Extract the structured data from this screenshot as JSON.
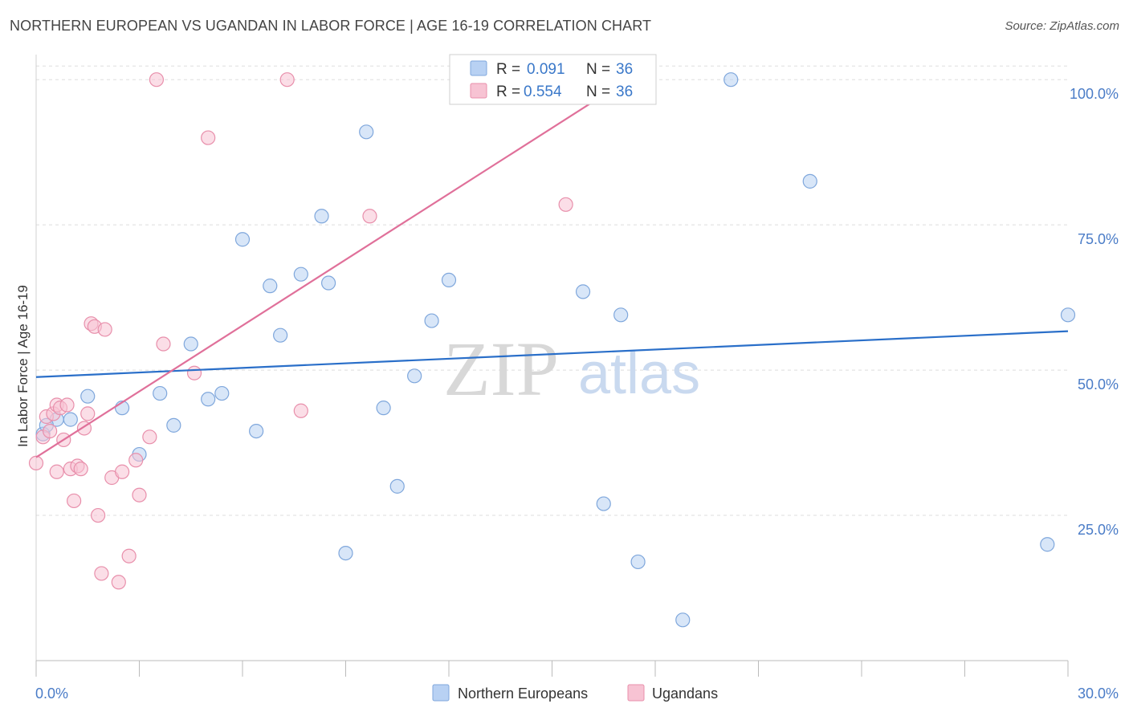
{
  "title": "NORTHERN EUROPEAN VS UGANDAN IN LABOR FORCE | AGE 16-19 CORRELATION CHART",
  "source": "Source: ZipAtlas.com",
  "watermark": {
    "zip": "ZIP",
    "atlas": "atlas"
  },
  "colors": {
    "blue_fill": "#b8d1f3",
    "blue_stroke": "#7fa7dc",
    "blue_line": "#2a6fc9",
    "pink_fill": "#f7c3d3",
    "pink_stroke": "#e88fab",
    "pink_line": "#e0709a",
    "grid": "#dddddd",
    "tick_label": "#4a7cc7"
  },
  "legend": {
    "r_label": "R =",
    "n_label": "N =",
    "entries": [
      {
        "r": "0.091",
        "n": "36"
      },
      {
        "r": "0.554",
        "n": "36"
      }
    ]
  },
  "chart_data": {
    "type": "scatter",
    "title": "NORTHERN EUROPEAN VS UGANDAN IN LABOR FORCE | AGE 16-19 CORRELATION CHART",
    "xlabel": "",
    "ylabel": "In Labor Force | Age 16-19",
    "xlim": [
      0,
      30
    ],
    "ylim": [
      0,
      105
    ],
    "x_tick_labels": [
      "0.0%",
      "30.0%"
    ],
    "y_ticks": [
      25,
      50,
      75,
      100
    ],
    "y_tick_labels": [
      "25.0%",
      "50.0%",
      "75.0%",
      "100.0%"
    ],
    "grid": true,
    "legend_position": "top-center",
    "series": [
      {
        "name": "Northern Europeans",
        "r": 0.091,
        "n": 36,
        "trend": [
          [
            0,
            48.8
          ],
          [
            30,
            56.7
          ]
        ],
        "points": [
          [
            0.2,
            39.0
          ],
          [
            0.6,
            41.5
          ],
          [
            1.0,
            41.5
          ],
          [
            1.5,
            45.5
          ],
          [
            2.5,
            43.5
          ],
          [
            3.0,
            35.5
          ],
          [
            3.6,
            46.0
          ],
          [
            4.0,
            40.5
          ],
          [
            4.5,
            54.5
          ],
          [
            5.0,
            45.0
          ],
          [
            5.4,
            46.0
          ],
          [
            6.0,
            72.5
          ],
          [
            6.4,
            39.5
          ],
          [
            6.8,
            64.5
          ],
          [
            7.1,
            56.0
          ],
          [
            7.7,
            66.5
          ],
          [
            8.3,
            76.5
          ],
          [
            8.5,
            65.0
          ],
          [
            9.0,
            18.5
          ],
          [
            9.6,
            91.0
          ],
          [
            10.1,
            43.5
          ],
          [
            10.5,
            30.0
          ],
          [
            11.0,
            49.0
          ],
          [
            11.5,
            58.5
          ],
          [
            12.0,
            65.5
          ],
          [
            14.1,
            100.0
          ],
          [
            15.9,
            63.5
          ],
          [
            16.5,
            27.0
          ],
          [
            17.0,
            59.5
          ],
          [
            17.5,
            17.0
          ],
          [
            18.8,
            7.0
          ],
          [
            20.2,
            100.0
          ],
          [
            22.5,
            82.5
          ],
          [
            29.4,
            20.0
          ],
          [
            30.0,
            59.5
          ],
          [
            0.3,
            40.5
          ]
        ]
      },
      {
        "name": "Ugandans",
        "r": 0.554,
        "n": 36,
        "trend": [
          [
            0,
            35.0
          ],
          [
            17.2,
            100.0
          ]
        ],
        "points": [
          [
            0.0,
            34.0
          ],
          [
            0.2,
            38.5
          ],
          [
            0.3,
            42.0
          ],
          [
            0.4,
            39.5
          ],
          [
            0.5,
            42.5
          ],
          [
            0.6,
            44.0
          ],
          [
            0.7,
            43.5
          ],
          [
            0.8,
            38.0
          ],
          [
            0.6,
            32.5
          ],
          [
            0.9,
            44.0
          ],
          [
            1.0,
            33.0
          ],
          [
            1.1,
            27.5
          ],
          [
            1.2,
            33.5
          ],
          [
            1.3,
            33.0
          ],
          [
            1.4,
            40.0
          ],
          [
            1.5,
            42.5
          ],
          [
            1.6,
            58.0
          ],
          [
            1.7,
            57.5
          ],
          [
            1.8,
            25.0
          ],
          [
            1.9,
            15.0
          ],
          [
            2.0,
            57.0
          ],
          [
            2.2,
            31.5
          ],
          [
            2.4,
            13.5
          ],
          [
            2.5,
            32.5
          ],
          [
            2.7,
            18.0
          ],
          [
            2.9,
            34.5
          ],
          [
            3.0,
            28.5
          ],
          [
            3.3,
            38.5
          ],
          [
            3.5,
            100.0
          ],
          [
            3.7,
            54.5
          ],
          [
            4.6,
            49.5
          ],
          [
            5.0,
            90.0
          ],
          [
            7.3,
            100.0
          ],
          [
            7.7,
            43.0
          ],
          [
            9.7,
            76.5
          ],
          [
            15.4,
            78.5
          ]
        ]
      }
    ]
  }
}
